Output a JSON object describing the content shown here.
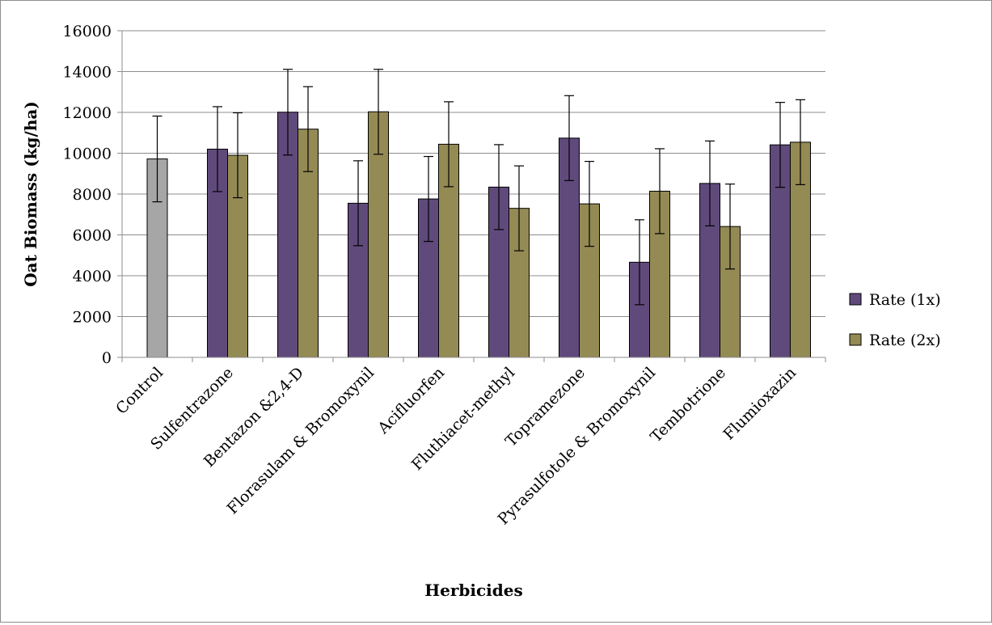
{
  "chart_data": {
    "type": "bar",
    "title": "",
    "xlabel": "Herbicides",
    "ylabel": "Oat Biomass (kg/ha)",
    "ylim": [
      0,
      16000
    ],
    "yticks": [
      0,
      2000,
      4000,
      6000,
      8000,
      10000,
      12000,
      14000,
      16000
    ],
    "grid": true,
    "legend_position": "right",
    "categories": [
      "Control",
      "Sulfentrazone",
      "Bentazon &2,4-D",
      "Florasulam & Bromoxynil",
      "Acifluorfen",
      "Fluthiacet-methyl",
      "Topramezone",
      "Pyrasulfotole & Bromoxynil",
      "Tembotrione",
      "Flumioxazin"
    ],
    "control": {
      "value": 9720,
      "error": 2100,
      "color": "#a6a6a6"
    },
    "series": [
      {
        "name": "Rate (1x)",
        "color": "#604a7b",
        "values": [
          null,
          10200,
          12010,
          7550,
          7760,
          8340,
          10740,
          4660,
          8520,
          10410
        ],
        "errors": [
          null,
          2080,
          2100,
          2080,
          2080,
          2080,
          2080,
          2080,
          2080,
          2080
        ]
      },
      {
        "name": "Rate (2x)",
        "color": "#948a54",
        "values": [
          null,
          9900,
          11180,
          12030,
          10440,
          7300,
          7520,
          8140,
          6410,
          10540
        ],
        "errors": [
          null,
          2080,
          2080,
          2080,
          2080,
          2080,
          2080,
          2080,
          2080,
          2080
        ]
      }
    ]
  }
}
